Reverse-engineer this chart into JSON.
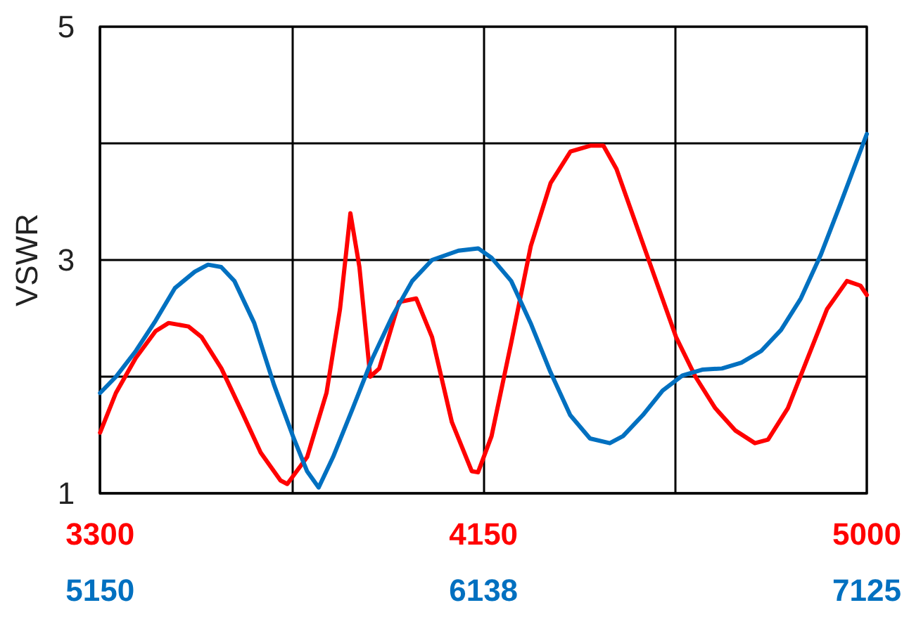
{
  "chart_data": {
    "type": "line",
    "ylabel": "VSWR",
    "xlim": [
      3300,
      5000
    ],
    "xticks": [
      3300,
      {
        "value": 3725,
        "label": null
      },
      4150,
      {
        "value": 4575,
        "label": null
      },
      5000
    ],
    "x2lim": [
      5150,
      7125
    ],
    "x2ticks": [
      5150,
      {
        "value": 5643.75,
        "label": null
      },
      {
        "value": 6137.5,
        "label": "6138"
      },
      {
        "value": 6631.25,
        "label": null
      },
      7125
    ],
    "ylim": [
      1,
      5
    ],
    "yticks": [
      1,
      {
        "value": 2,
        "label": null
      },
      3,
      {
        "value": 4,
        "label": null
      },
      5
    ],
    "grid": true,
    "series": [
      {
        "color": "#ff0000",
        "x": [
          3300,
          3335,
          3379,
          3423,
          3452,
          3496,
          3525,
          3569,
          3613,
          3656,
          3700,
          3715,
          3759,
          3802,
          3832,
          3855,
          3875,
          3899,
          3919,
          3963,
          4001,
          4036,
          4080,
          4124,
          4138,
          4168,
          4211,
          4255,
          4299,
          4343,
          4387,
          4416,
          4445,
          4489,
          4533,
          4577,
          4620,
          4664,
          4708,
          4752,
          4781,
          4825,
          4869,
          4912,
          4956,
          4986,
          5000
        ],
        "values": [
          1.52,
          1.86,
          2.16,
          2.39,
          2.46,
          2.43,
          2.34,
          2.07,
          1.71,
          1.35,
          1.11,
          1.08,
          1.31,
          1.86,
          2.58,
          3.4,
          2.94,
          2.0,
          2.07,
          2.64,
          2.67,
          2.34,
          1.61,
          1.19,
          1.18,
          1.49,
          2.28,
          3.12,
          3.66,
          3.93,
          3.98,
          3.98,
          3.78,
          3.3,
          2.82,
          2.34,
          2.0,
          1.73,
          1.54,
          1.43,
          1.46,
          1.73,
          2.16,
          2.58,
          2.82,
          2.78,
          2.7
        ]
      },
      {
        "color": "#0070c0",
        "axis": "x2",
        "x": [
          5150,
          5191,
          5242,
          5293,
          5343,
          5394,
          5428,
          5462,
          5496,
          5547,
          5598,
          5649,
          5683,
          5713,
          5750,
          5801,
          5852,
          5903,
          5954,
          6005,
          6073,
          6124,
          6158,
          6209,
          6259,
          6310,
          6361,
          6412,
          6463,
          6497,
          6548,
          6599,
          6650,
          6701,
          6752,
          6802,
          6853,
          6904,
          6955,
          7006,
          7057,
          7091,
          7125
        ],
        "values": [
          1.86,
          2.0,
          2.22,
          2.48,
          2.76,
          2.9,
          2.96,
          2.94,
          2.82,
          2.46,
          1.93,
          1.47,
          1.19,
          1.05,
          1.31,
          1.73,
          2.16,
          2.52,
          2.82,
          3.0,
          3.08,
          3.1,
          3.02,
          2.82,
          2.46,
          2.04,
          1.67,
          1.47,
          1.43,
          1.49,
          1.67,
          1.88,
          2.01,
          2.06,
          2.07,
          2.12,
          2.22,
          2.4,
          2.67,
          3.04,
          3.48,
          3.78,
          4.08
        ]
      }
    ]
  }
}
